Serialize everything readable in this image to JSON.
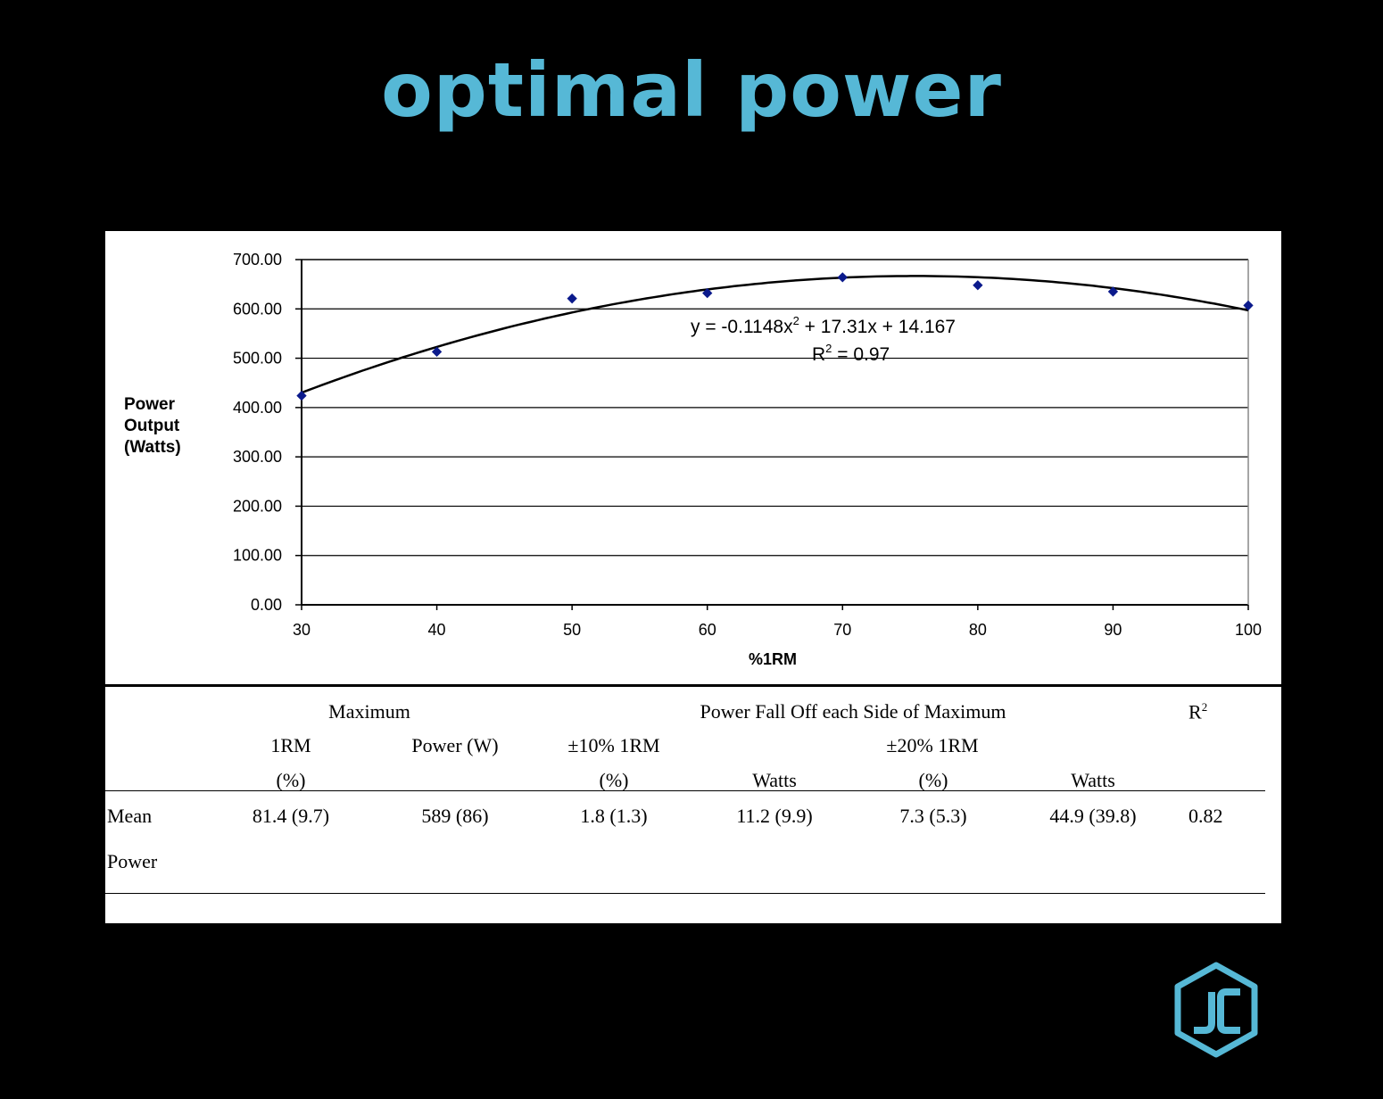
{
  "slide": {
    "title": "optimal power"
  },
  "chart_data": {
    "type": "scatter",
    "title": "",
    "xlabel": "%1RM",
    "ylabel": [
      "Power",
      "Output",
      "(Watts)"
    ],
    "xlim": [
      30,
      100
    ],
    "ylim": [
      0,
      700
    ],
    "x_ticks": [
      "30",
      "40",
      "50",
      "60",
      "70",
      "80",
      "90",
      "100"
    ],
    "y_ticks": [
      "0.00",
      "100.00",
      "200.00",
      "300.00",
      "400.00",
      "500.00",
      "600.00",
      "700.00"
    ],
    "grid": "horizontal",
    "legend": "none",
    "series": [
      {
        "x": [
          30,
          40,
          50,
          60,
          70,
          80,
          90,
          100
        ],
        "y": [
          424,
          513,
          621,
          632,
          664,
          648,
          635,
          607
        ]
      }
    ],
    "trendline": {
      "type": "polynomial",
      "coefficients": [
        -0.1148,
        17.31,
        14.167
      ],
      "equation": "y = -0.1148x2 + 17.31x + 14.167",
      "equation_parts": {
        "before": "y = -0.1148x",
        "sup": "2",
        "after": " + 17.31x + 14.167"
      },
      "r2_parts": {
        "before": "R",
        "sup": "2",
        "after": " = 0.97"
      }
    },
    "colors": {
      "marker": "#0b1a8c",
      "line": "#000000",
      "grid": "#000000"
    }
  },
  "table": {
    "h1": {
      "maximum": "Maximum",
      "falloff": "Power Fall Off each Side of Maximum",
      "r2": {
        "base": "R",
        "sup": "2"
      }
    },
    "h2": {
      "rm": "1RM",
      "power": "Power (W)",
      "pm10": "±10% 1RM",
      "pm20": "±20% 1RM"
    },
    "h3": {
      "pct1": "(%)",
      "pct2": "(%)",
      "watts1": "Watts",
      "pct3": "(%)",
      "watts2": "Watts"
    },
    "row": {
      "label1": "Mean",
      "label2": "Power",
      "values": [
        "81.4 (9.7)",
        "589 (86)",
        "1.8 (1.3)",
        "11.2 (9.9)",
        "7.3 (5.3)",
        "44.9 (39.8)",
        "0.82"
      ]
    }
  },
  "logo": {
    "text": "JC",
    "color": "#56b8d6"
  }
}
